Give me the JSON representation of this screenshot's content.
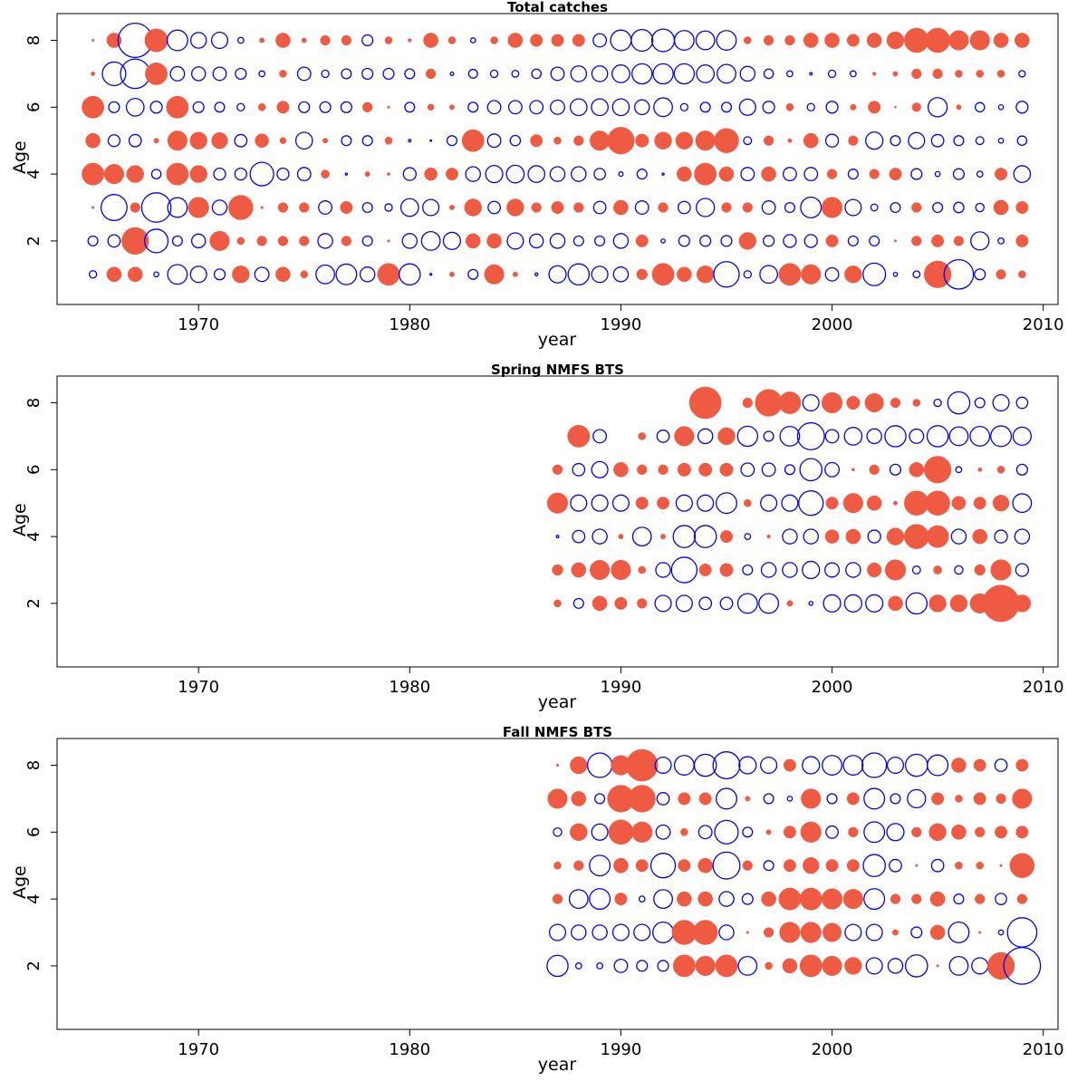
{
  "chart_data": [
    {
      "type": "scatter",
      "title": "Total catches",
      "xlabel": "year",
      "ylabel": "Age",
      "xlim": [
        1963.3,
        2010.7
      ],
      "ylim": [
        0.1,
        8.8
      ],
      "xticks": [
        "1970",
        "1980",
        "1990",
        "2000",
        "2010"
      ],
      "yticks": [
        "2",
        "4",
        "6",
        "8"
      ],
      "grid": false,
      "marker_encoding": "bubble area ~ residual magnitude; filled red = positive, open blue = negative",
      "colors": {
        "positive": "#ee5a42",
        "negative": "#0000ff"
      },
      "x": [
        1965,
        1966,
        1967,
        1968,
        1969,
        1970,
        1971,
        1972,
        1973,
        1974,
        1975,
        1976,
        1977,
        1978,
        1979,
        1980,
        1981,
        1982,
        1983,
        1984,
        1985,
        1986,
        1987,
        1988,
        1989,
        1990,
        1991,
        1992,
        1993,
        1994,
        1995,
        1996,
        1997,
        1998,
        1999,
        2000,
        2001,
        2002,
        2003,
        2004,
        2005,
        2006,
        2007,
        2008,
        2009
      ],
      "series": [
        {
          "age": 1,
          "values": [
            -0.15,
            0.3,
            0.3,
            -0.1,
            -0.4,
            -0.33,
            -0.22,
            0.35,
            -0.29,
            0.3,
            0.15,
            -0.38,
            -0.42,
            -0.3,
            0.45,
            -0.43,
            -0.04,
            0.1,
            -0.2,
            0.4,
            0.1,
            -0.06,
            -0.35,
            -0.43,
            -0.33,
            -0.3,
            0.22,
            0.45,
            0.3,
            0.35,
            -0.52,
            -0.15,
            -0.36,
            0.45,
            0.4,
            -0.27,
            0.35,
            -0.46,
            -0.08,
            -0.14,
            0.55,
            -0.6,
            -0.22,
            0.2,
            0.15
          ]
        },
        {
          "age": 2,
          "values": [
            -0.2,
            -0.25,
            0.55,
            -0.48,
            -0.2,
            -0.28,
            0.4,
            0.15,
            0.2,
            0.2,
            0.2,
            -0.3,
            0.2,
            -0.2,
            0.05,
            -0.3,
            -0.38,
            -0.35,
            0.3,
            0.3,
            -0.33,
            -0.28,
            -0.3,
            -0.2,
            -0.2,
            -0.3,
            0.25,
            -0.08,
            -0.22,
            -0.22,
            -0.22,
            0.35,
            -0.22,
            -0.26,
            -0.26,
            0.25,
            -0.2,
            -0.2,
            0.05,
            0.2,
            0.25,
            0.2,
            -0.37,
            -0.12,
            0.25
          ]
        },
        {
          "age": 3,
          "values": [
            0.05,
            -0.53,
            0.2,
            -0.6,
            -0.4,
            0.42,
            -0.3,
            0.5,
            0.05,
            0.2,
            0.2,
            -0.27,
            0.25,
            -0.2,
            -0.15,
            -0.36,
            -0.33,
            0.1,
            0.35,
            -0.25,
            0.35,
            0.2,
            0.25,
            0.2,
            -0.25,
            0.3,
            -0.27,
            0.2,
            -0.25,
            -0.37,
            0.2,
            0.2,
            -0.27,
            -0.2,
            -0.42,
            0.42,
            -0.33,
            -0.14,
            -0.2,
            0.2,
            -0.2,
            -0.21,
            -0.17,
            0.3,
            0.25
          ]
        },
        {
          "age": 4,
          "values": [
            0.45,
            0.4,
            0.35,
            -0.19,
            0.45,
            0.35,
            -0.24,
            -0.24,
            -0.48,
            -0.24,
            -0.27,
            0.17,
            -0.04,
            0.1,
            0.06,
            -0.26,
            0.26,
            0.25,
            -0.3,
            -0.35,
            -0.36,
            -0.34,
            -0.3,
            -0.3,
            -0.23,
            -0.09,
            -0.2,
            -0.04,
            0.3,
            0.45,
            0.3,
            -0.27,
            0.3,
            -0.27,
            -0.27,
            0.2,
            -0.2,
            0.2,
            0.25,
            -0.22,
            -0.1,
            -0.22,
            -0.12,
            0.25,
            -0.34
          ]
        },
        {
          "age": 5,
          "values": [
            0.3,
            -0.24,
            -0.25,
            0.1,
            0.4,
            0.35,
            0.33,
            -0.25,
            0.28,
            0.13,
            -0.34,
            0.1,
            -0.2,
            -0.2,
            0.15,
            -0.05,
            -0.02,
            -0.2,
            0.45,
            -0.27,
            -0.21,
            0.25,
            0.15,
            0.2,
            0.4,
            0.55,
            0.27,
            0.35,
            0.35,
            0.4,
            0.5,
            -0.16,
            0.2,
            0.08,
            0.3,
            -0.26,
            0.2,
            -0.35,
            -0.2,
            -0.33,
            -0.25,
            -0.2,
            -0.16,
            -0.1,
            -0.19
          ]
        },
        {
          "age": 6,
          "values": [
            0.45,
            -0.22,
            -0.36,
            -0.24,
            0.45,
            -0.22,
            -0.2,
            -0.15,
            0.15,
            0.25,
            -0.22,
            -0.22,
            -0.22,
            0.2,
            0.05,
            -0.2,
            0.13,
            0.1,
            -0.2,
            -0.27,
            -0.27,
            -0.27,
            -0.29,
            -0.34,
            -0.34,
            -0.34,
            -0.3,
            -0.38,
            -0.15,
            -0.2,
            -0.2,
            -0.33,
            -0.24,
            0.15,
            -0.15,
            -0.24,
            0.12,
            0.25,
            0.04,
            0.18,
            -0.39,
            0.1,
            -0.19,
            -0.1,
            -0.24
          ]
        },
        {
          "age": 7,
          "values": [
            0.08,
            -0.48,
            -0.6,
            0.45,
            -0.29,
            -0.28,
            -0.27,
            -0.22,
            -0.12,
            0.15,
            -0.27,
            -0.15,
            -0.2,
            -0.22,
            -0.22,
            -0.2,
            0.2,
            -0.07,
            -0.18,
            -0.15,
            -0.14,
            -0.19,
            -0.27,
            -0.32,
            -0.32,
            -0.36,
            -0.41,
            -0.41,
            -0.41,
            -0.36,
            -0.38,
            -0.3,
            -0.19,
            -0.12,
            -0.05,
            -0.15,
            -0.12,
            0.07,
            0.1,
            0.2,
            0.2,
            0.15,
            0.15,
            0.15,
            -0.13
          ]
        },
        {
          "age": 8,
          "values": [
            0.05,
            0.3,
            -0.7,
            0.47,
            -0.42,
            -0.32,
            -0.33,
            -0.12,
            0.1,
            0.3,
            0.1,
            0.2,
            0.2,
            -0.22,
            0.15,
            0.07,
            0.3,
            0.15,
            -0.1,
            0.15,
            0.3,
            0.25,
            0.25,
            0.25,
            -0.27,
            -0.42,
            -0.44,
            -0.46,
            -0.4,
            -0.38,
            -0.4,
            0.15,
            0.2,
            0.2,
            0.3,
            0.3,
            0.25,
            0.3,
            0.35,
            0.5,
            0.5,
            0.4,
            0.4,
            0.3,
            0.3
          ]
        }
      ]
    },
    {
      "type": "scatter",
      "title": "Spring NMFS BTS",
      "xlabel": "year",
      "ylabel": "Age",
      "xlim": [
        1963.3,
        2010.7
      ],
      "ylim": [
        0.1,
        8.8
      ],
      "xticks": [
        "1970",
        "1980",
        "1990",
        "2000",
        "2010"
      ],
      "yticks": [
        "2",
        "4",
        "6",
        "8"
      ],
      "grid": false,
      "marker_encoding": "bubble area ~ residual magnitude; filled red = positive, open blue = negative",
      "colors": {
        "positive": "#ee5a42",
        "negative": "#0000ff"
      },
      "x": [
        1987,
        1988,
        1989,
        1990,
        1991,
        1992,
        1993,
        1994,
        1995,
        1996,
        1997,
        1998,
        1999,
        2000,
        2001,
        2002,
        2003,
        2004,
        2005,
        2006,
        2007,
        2008,
        2009
      ],
      "series": [
        {
          "age": 2,
          "values": [
            0.15,
            -0.2,
            0.3,
            0.25,
            0.2,
            -0.33,
            -0.33,
            -0.25,
            -0.25,
            -0.4,
            -0.4,
            0.12,
            -0.08,
            -0.35,
            -0.35,
            -0.35,
            0.3,
            -0.43,
            0.35,
            0.35,
            0.4,
            0.75,
            0.35
          ]
        },
        {
          "age": 3,
          "values": [
            0.22,
            0.3,
            0.4,
            0.4,
            0.15,
            -0.3,
            -0.52,
            0.25,
            0.27,
            -0.2,
            -0.3,
            -0.3,
            -0.35,
            -0.29,
            -0.3,
            0.29,
            0.42,
            -0.16,
            0.17,
            -0.17,
            0.22,
            0.42,
            -0.26
          ]
        },
        {
          "age": 4,
          "values": [
            -0.05,
            -0.25,
            -0.3,
            0.1,
            -0.38,
            0.1,
            -0.45,
            -0.45,
            0.25,
            -0.12,
            0.07,
            -0.3,
            -0.3,
            0.28,
            0.3,
            -0.26,
            0.35,
            0.5,
            0.45,
            -0.3,
            0.3,
            -0.26,
            -0.3
          ]
        },
        {
          "age": 5,
          "values": [
            0.42,
            -0.33,
            -0.33,
            -0.33,
            0.25,
            0.25,
            -0.33,
            -0.33,
            -0.42,
            0.15,
            -0.33,
            -0.33,
            -0.5,
            0.25,
            0.4,
            0.3,
            0.08,
            0.5,
            0.5,
            0.28,
            0.25,
            0.33,
            -0.38
          ]
        },
        {
          "age": 6,
          "values": [
            0.2,
            -0.25,
            -0.33,
            0.3,
            0.2,
            0.2,
            0.27,
            0.27,
            0.27,
            -0.27,
            -0.27,
            -0.2,
            -0.45,
            -0.29,
            0.06,
            0.2,
            -0.22,
            0.3,
            0.55,
            -0.12,
            0.08,
            0.15,
            -0.22
          ]
        },
        {
          "age": 7,
          "values": [
            0,
            0.45,
            -0.27,
            0,
            0.15,
            -0.25,
            0.4,
            -0.3,
            0.35,
            -0.41,
            -0.2,
            -0.4,
            -0.55,
            -0.27,
            -0.36,
            -0.3,
            -0.43,
            -0.29,
            -0.43,
            -0.38,
            -0.4,
            -0.42,
            -0.37
          ]
        },
        {
          "age": 8,
          "values": [
            0,
            0,
            0,
            0,
            0,
            0,
            0,
            0.65,
            0,
            0.2,
            0.55,
            0.45,
            -0.33,
            0.42,
            0.27,
            0.38,
            0.2,
            0.15,
            -0.15,
            -0.45,
            -0.2,
            -0.33,
            -0.23
          ]
        }
      ]
    },
    {
      "type": "scatter",
      "title": "Fall NMFS BTS",
      "xlabel": "year",
      "ylabel": "Age",
      "xlim": [
        1963.3,
        2010.7
      ],
      "ylim": [
        0.1,
        8.8
      ],
      "xticks": [
        "1970",
        "1980",
        "1990",
        "2000",
        "2010"
      ],
      "yticks": [
        "2",
        "4",
        "6",
        "8"
      ],
      "grid": false,
      "marker_encoding": "bubble area ~ residual magnitude; filled red = positive, open blue = negative",
      "colors": {
        "positive": "#ee5a42",
        "negative": "#0000ff"
      },
      "x": [
        1987,
        1988,
        1989,
        1990,
        1991,
        1992,
        1993,
        1994,
        1995,
        1996,
        1997,
        1998,
        1999,
        2000,
        2001,
        2002,
        2003,
        2004,
        2005,
        2006,
        2007,
        2008,
        2009
      ],
      "series": [
        {
          "age": 2,
          "values": [
            -0.43,
            -0.12,
            -0.12,
            -0.27,
            -0.22,
            -0.22,
            0.45,
            0.4,
            0.45,
            -0.38,
            0.15,
            0.3,
            0.45,
            0.4,
            0.35,
            -0.33,
            -0.3,
            -0.45,
            0.05,
            -0.38,
            -0.33,
            0.55,
            -0.75
          ]
        },
        {
          "age": 3,
          "values": [
            -0.33,
            -0.3,
            -0.3,
            -0.33,
            -0.33,
            -0.42,
            0.5,
            0.5,
            -0.3,
            0.05,
            0.2,
            0.42,
            0.42,
            0.38,
            -0.33,
            -0.33,
            0.12,
            -0.22,
            0.3,
            -0.42,
            0.05,
            -0.1,
            -0.6
          ]
        },
        {
          "age": 4,
          "values": [
            0.2,
            -0.38,
            -0.42,
            0.25,
            -0.12,
            -0.38,
            0.3,
            0.3,
            -0.3,
            -0.22,
            0.3,
            0.45,
            0.45,
            0.42,
            0.4,
            -0.42,
            0.2,
            0.2,
            0.3,
            -0.2,
            0.2,
            -0.23,
            0.2
          ]
        },
        {
          "age": 5,
          "values": [
            0.15,
            0.2,
            -0.42,
            0.3,
            0.25,
            -0.5,
            0.25,
            0.3,
            -0.55,
            0.2,
            -0.2,
            0.25,
            0.33,
            0.25,
            0.25,
            -0.45,
            -0.25,
            0.05,
            -0.25,
            0.15,
            0.15,
            0.05,
            0.5
          ]
        },
        {
          "age": 6,
          "values": [
            -0.17,
            0.35,
            -0.33,
            0.5,
            0.42,
            -0.29,
            0.15,
            -0.27,
            -0.48,
            -0.2,
            0.1,
            0.25,
            0.42,
            -0.25,
            0.2,
            -0.42,
            -0.35,
            0.2,
            0.35,
            0.3,
            0.2,
            0.25,
            0.25
          ]
        },
        {
          "age": 7,
          "values": [
            0.4,
            0.3,
            -0.2,
            0.55,
            0.55,
            -0.25,
            0.25,
            0.25,
            -0.42,
            0.1,
            -0.2,
            -0.1,
            0.4,
            -0.2,
            0.25,
            -0.42,
            -0.2,
            -0.37,
            0.25,
            0.15,
            0.25,
            0.2,
            0.4
          ]
        },
        {
          "age": 8,
          "values": [
            0.05,
            0.35,
            -0.5,
            0.4,
            0.65,
            -0.33,
            -0.4,
            -0.45,
            -0.55,
            -0.35,
            -0.33,
            0.25,
            -0.35,
            -0.4,
            -0.4,
            -0.5,
            -0.33,
            -0.45,
            -0.42,
            0.3,
            0.25,
            -0.25,
            0.25
          ]
        }
      ]
    }
  ]
}
